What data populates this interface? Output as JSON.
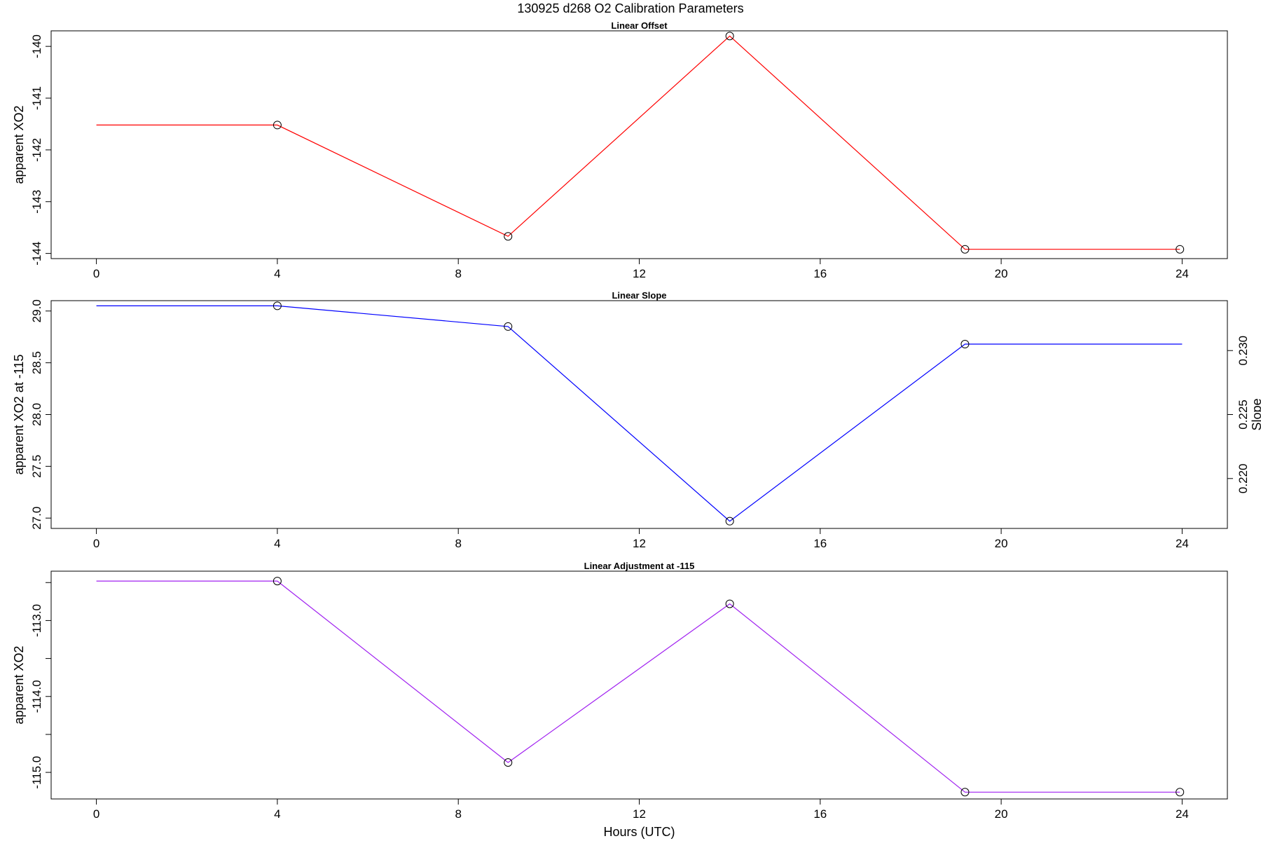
{
  "page": {
    "title": "130925   d268   O2 Calibration Parameters",
    "xlabel": "Hours (UTC)"
  },
  "chart_data": [
    {
      "type": "line",
      "title": "Linear Offset",
      "xlabel": "",
      "ylabel": "apparent XO2",
      "xlim": [
        -1,
        25
      ],
      "ylim": [
        -144.1,
        -139.7
      ],
      "xticks": [
        0,
        4,
        8,
        12,
        16,
        20,
        24
      ],
      "yticks": [
        -144,
        -143,
        -142,
        -141,
        -140
      ],
      "yticklabels": [
        "-144",
        "-143",
        "-142",
        "-141",
        "-140"
      ],
      "color": "#ff0000",
      "series": [
        {
          "x": [
            0,
            4,
            9.1,
            14.0,
            19.2,
            23.95
          ],
          "y": [
            -141.52,
            -141.52,
            -143.67,
            -139.8,
            -143.92,
            -143.92
          ],
          "markers": [
            false,
            true,
            true,
            true,
            true,
            true
          ]
        }
      ]
    },
    {
      "type": "line",
      "title": "Linear Slope",
      "xlabel": "",
      "ylabel": "apparent XO2 at -115",
      "ylabel_right": "Slope",
      "xlim": [
        -1,
        25
      ],
      "ylim": [
        26.9,
        29.1
      ],
      "xticks": [
        0,
        4,
        8,
        12,
        16,
        20,
        24
      ],
      "yticks": [
        27.0,
        27.5,
        28.0,
        28.5,
        29.0
      ],
      "yticklabels": [
        "27.0",
        "27.5",
        "28.0",
        "28.5",
        "29.0"
      ],
      "y2lim": [
        0.2161,
        0.2339
      ],
      "y2ticks": [
        0.22,
        0.225,
        0.23
      ],
      "y2ticklabels": [
        "0.220",
        "0.225",
        "0.230"
      ],
      "color": "#0000ff",
      "series": [
        {
          "x": [
            0,
            4,
            9.1,
            14.0,
            19.2,
            24.0
          ],
          "y": [
            29.05,
            29.05,
            28.85,
            26.97,
            28.68,
            28.68
          ],
          "markers": [
            false,
            true,
            true,
            true,
            true,
            false
          ]
        }
      ]
    },
    {
      "type": "line",
      "title": "Linear Adjustment at -115",
      "xlabel": "Hours (UTC)",
      "ylabel": "apparent XO2",
      "xlim": [
        -1,
        25
      ],
      "ylim": [
        -115.35,
        -112.35
      ],
      "xticks": [
        0,
        4,
        8,
        12,
        16,
        20,
        24
      ],
      "yticks": [
        -115.0,
        -114.5,
        -114.0,
        -113.5,
        -113.0,
        -112.5
      ],
      "yticklabels": [
        "-115.0",
        "",
        "-114.0",
        "",
        "-113.0",
        ""
      ],
      "color": "#a020f0",
      "series": [
        {
          "x": [
            0,
            4,
            9.1,
            14.0,
            19.2,
            23.95
          ],
          "y": [
            -112.48,
            -112.48,
            -114.87,
            -112.78,
            -115.26,
            -115.26
          ],
          "markers": [
            false,
            true,
            true,
            true,
            true,
            true
          ]
        }
      ]
    }
  ]
}
